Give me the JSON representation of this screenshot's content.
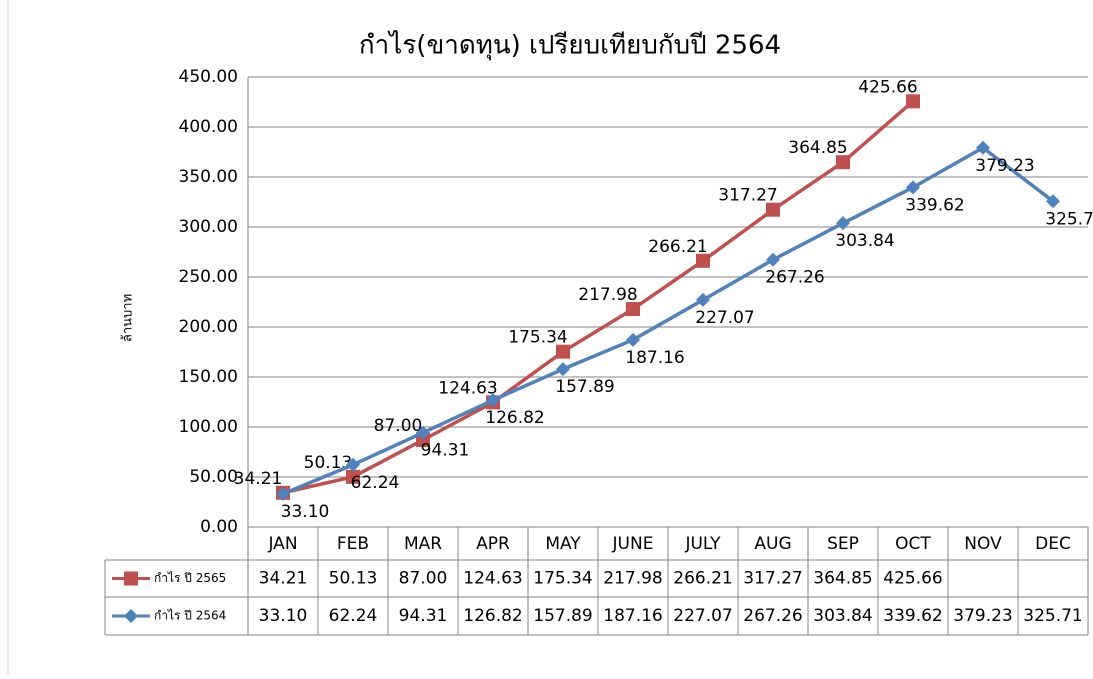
{
  "chart_data": {
    "type": "line",
    "title": "กำไร(ขาดทุน) เปรียบเทียบกับปี 2564",
    "y_label": "ล้านบาท",
    "categories": [
      "JAN",
      "FEB",
      "MAR",
      "APR",
      "MAY",
      "JUNE",
      "JULY",
      "AUG",
      "SEP",
      "OCT",
      "NOV",
      "DEC"
    ],
    "series": [
      {
        "name": "กำไร ปี 2565",
        "color": "#c0504d",
        "marker": "square",
        "values": [
          34.21,
          50.13,
          87.0,
          124.63,
          175.34,
          217.98,
          266.21,
          317.27,
          364.85,
          425.66,
          null,
          null
        ],
        "value_labels": [
          "34.21",
          "50.13",
          "87.00",
          "124.63",
          "175.34",
          "217.98",
          "266.21",
          "317.27",
          "364.85",
          "425.66",
          null,
          null
        ]
      },
      {
        "name": "กำไร ปี 2564",
        "color": "#4f81bd",
        "marker": "diamond",
        "values": [
          33.1,
          62.24,
          94.31,
          126.82,
          157.89,
          187.16,
          227.07,
          267.26,
          303.84,
          339.62,
          379.23,
          325.71
        ],
        "value_labels": [
          "33.10",
          "62.24",
          "94.31",
          "126.82",
          "157.89",
          "187.16",
          "227.07",
          "267.26",
          "303.84",
          "339.62",
          "379.23",
          "325.71"
        ]
      }
    ],
    "ylim": [
      0,
      450
    ],
    "yticks": [
      {
        "value": 0,
        "label": "0.00"
      },
      {
        "value": 50,
        "label": "50.00"
      },
      {
        "value": 100,
        "label": "100.00"
      },
      {
        "value": 150,
        "label": "150.00"
      },
      {
        "value": 200,
        "label": "200.00"
      },
      {
        "value": 250,
        "label": "250.00"
      },
      {
        "value": 300,
        "label": "300.00"
      },
      {
        "value": 350,
        "label": "350.00"
      },
      {
        "value": 400,
        "label": "400.00"
      },
      {
        "value": 450,
        "label": "450.00"
      }
    ],
    "grid": true
  }
}
